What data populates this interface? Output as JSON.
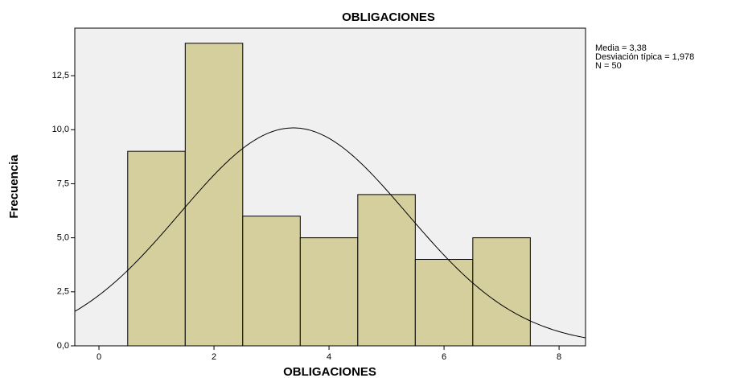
{
  "chart_data": {
    "type": "histogram",
    "title": "OBLIGACIONES",
    "x_label": "OBLIGACIONES",
    "y_label": "Frecuencia",
    "bins": [
      0.5,
      1.5,
      2.5,
      3.5,
      4.5,
      5.5,
      6.5,
      7.5
    ],
    "counts": [
      9,
      14,
      6,
      5,
      7,
      4,
      5
    ],
    "color": "#d4cf9c",
    "xlim": [
      -0.42,
      8.46
    ],
    "xticks": [
      0,
      2,
      4,
      6,
      8
    ],
    "ylim": [
      0,
      14.7
    ],
    "yticks": [
      {
        "value": 0,
        "label": "0,0"
      },
      {
        "value": 2.5,
        "label": "2,5"
      },
      {
        "value": 5,
        "label": "5,0"
      },
      {
        "value": 7.5,
        "label": "7,5"
      },
      {
        "value": 10,
        "label": "10,0"
      },
      {
        "value": 12.5,
        "label": "12,5"
      }
    ],
    "normal_curve": {
      "mean": 3.38,
      "sd": 1.978,
      "n": 50
    },
    "annotations": [
      "Media = 3,38",
      "Desviación típica = 1,978",
      "N = 50"
    ]
  }
}
